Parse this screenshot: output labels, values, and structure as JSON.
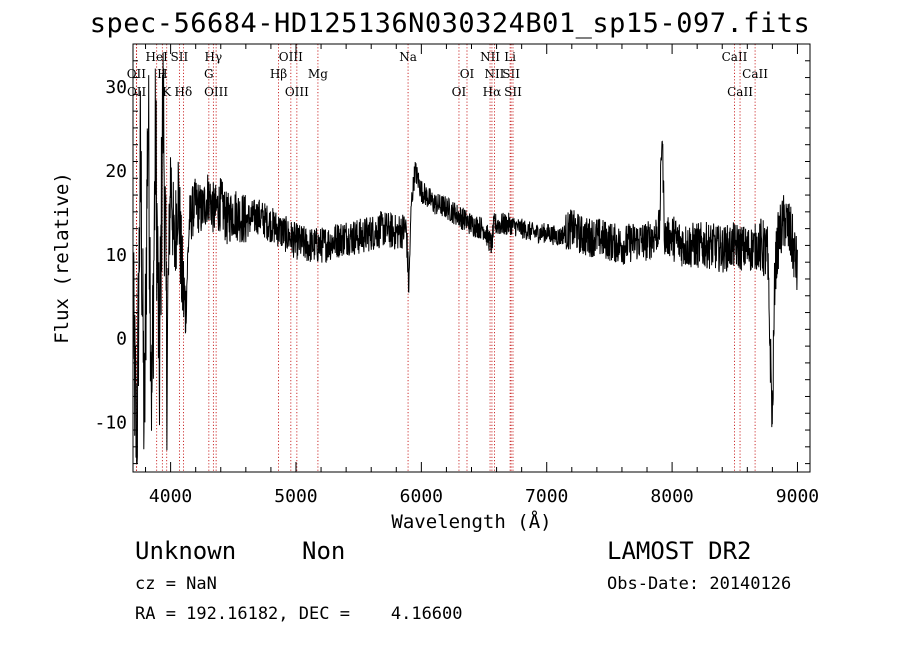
{
  "title": "spec-56684-HD125136N030324B01_sp15-097.fits",
  "chart_data": {
    "type": "line",
    "xlabel": "Wavelength (Å)",
    "ylabel": "Flux (relative)",
    "xlim": [
      3700,
      9100
    ],
    "ylim": [
      -16,
      35
    ],
    "xticks": [
      4000,
      5000,
      6000,
      7000,
      8000,
      9000
    ],
    "yticks": [
      -10,
      0,
      10,
      20,
      30
    ],
    "grid": false,
    "line_colors": {
      "spectrum": "#000000",
      "line_markers": "#c00000"
    },
    "spectral_lines": [
      {
        "label": "OII",
        "wavelength": 3727,
        "row": 2
      },
      {
        "label": "OII",
        "wavelength": 3729,
        "row": 3
      },
      {
        "label": "HeI",
        "wavelength": 3889,
        "row": 1
      },
      {
        "label": "H",
        "wavelength": 3934,
        "row": 2
      },
      {
        "label": "K",
        "wavelength": 3969,
        "row": 3
      },
      {
        "label": "SII",
        "wavelength": 4070,
        "row": 1
      },
      {
        "label": "Hδ",
        "wavelength": 4102,
        "row": 3
      },
      {
        "label": "Hγ",
        "wavelength": 4341,
        "row": 1
      },
      {
        "label": "G",
        "wavelength": 4305,
        "row": 2
      },
      {
        "label": "OIII",
        "wavelength": 4363,
        "row": 3
      },
      {
        "label": "Hβ",
        "wavelength": 4861,
        "row": 2
      },
      {
        "label": "OIII",
        "wavelength": 4959,
        "row": 1
      },
      {
        "label": "OIII",
        "wavelength": 5007,
        "row": 3
      },
      {
        "label": "Mg",
        "wavelength": 5175,
        "row": 2
      },
      {
        "label": "Na",
        "wavelength": 5894,
        "row": 1
      },
      {
        "label": "OI",
        "wavelength": 6300,
        "row": 3
      },
      {
        "label": "OI",
        "wavelength": 6364,
        "row": 2
      },
      {
        "label": "NII",
        "wavelength": 6548,
        "row": 1
      },
      {
        "label": "NII",
        "wavelength": 6583,
        "row": 2
      },
      {
        "label": "Hα",
        "wavelength": 6563,
        "row": 3
      },
      {
        "label": "Li",
        "wavelength": 6708,
        "row": 1
      },
      {
        "label": "SII",
        "wavelength": 6716,
        "row": 2
      },
      {
        "label": "SII",
        "wavelength": 6731,
        "row": 3
      },
      {
        "label": "CaII",
        "wavelength": 8498,
        "row": 1
      },
      {
        "label": "CaII",
        "wavelength": 8542,
        "row": 3
      },
      {
        "label": "CaII",
        "wavelength": 8662,
        "row": 2
      }
    ],
    "series": [
      {
        "anchors": [
          [
            3700,
            3
          ],
          [
            3730,
            -14
          ],
          [
            3760,
            22
          ],
          [
            3790,
            -12
          ],
          [
            3820,
            28
          ],
          [
            3850,
            -8
          ],
          [
            3880,
            24
          ],
          [
            3910,
            -5
          ],
          [
            3940,
            30
          ],
          [
            3970,
            -3
          ],
          [
            4000,
            20
          ],
          [
            4030,
            10
          ],
          [
            4060,
            18
          ],
          [
            4090,
            7
          ],
          [
            4120,
            3
          ],
          [
            4150,
            14
          ],
          [
            4200,
            16
          ],
          [
            4250,
            15
          ],
          [
            4300,
            17
          ],
          [
            4350,
            15
          ],
          [
            4400,
            16
          ],
          [
            4450,
            14
          ],
          [
            4500,
            15
          ],
          [
            4600,
            14
          ],
          [
            4700,
            14.5
          ],
          [
            4800,
            13.5
          ],
          [
            4900,
            12.5
          ],
          [
            5000,
            11.5
          ],
          [
            5100,
            11
          ],
          [
            5200,
            11
          ],
          [
            5300,
            11.5
          ],
          [
            5400,
            12
          ],
          [
            5500,
            12
          ],
          [
            5600,
            12.5
          ],
          [
            5700,
            13
          ],
          [
            5800,
            12.5
          ],
          [
            5880,
            13
          ],
          [
            5900,
            6
          ],
          [
            5920,
            16
          ],
          [
            5950,
            20
          ],
          [
            6000,
            17.5
          ],
          [
            6100,
            16
          ],
          [
            6200,
            15.5
          ],
          [
            6300,
            14.5
          ],
          [
            6400,
            13.5
          ],
          [
            6500,
            13
          ],
          [
            6560,
            11
          ],
          [
            6580,
            13.5
          ],
          [
            6700,
            13.5
          ],
          [
            6800,
            13
          ],
          [
            6900,
            12.5
          ],
          [
            7000,
            12.5
          ],
          [
            7100,
            12
          ],
          [
            7200,
            13
          ],
          [
            7300,
            12
          ],
          [
            7400,
            12
          ],
          [
            7500,
            11.5
          ],
          [
            7600,
            11
          ],
          [
            7700,
            11.5
          ],
          [
            7800,
            11.5
          ],
          [
            7850,
            12
          ],
          [
            7900,
            13
          ],
          [
            7920,
            25
          ],
          [
            7940,
            12
          ],
          [
            8000,
            12
          ],
          [
            8100,
            11
          ],
          [
            8200,
            11
          ],
          [
            8300,
            11
          ],
          [
            8400,
            10.5
          ],
          [
            8500,
            11
          ],
          [
            8600,
            10.5
          ],
          [
            8700,
            11
          ],
          [
            8760,
            10
          ],
          [
            8800,
            -10
          ],
          [
            8820,
            8
          ],
          [
            8850,
            12
          ],
          [
            8900,
            14
          ],
          [
            8950,
            12
          ],
          [
            9000,
            8
          ]
        ]
      }
    ]
  },
  "footer": {
    "object_class": "Unknown",
    "subclass": "Non",
    "survey": "LAMOST DR2",
    "cz": "cz = NaN",
    "obs_date": "Obs-Date: 20140126",
    "coords": "RA = 192.16182, DEC =    4.16600"
  }
}
